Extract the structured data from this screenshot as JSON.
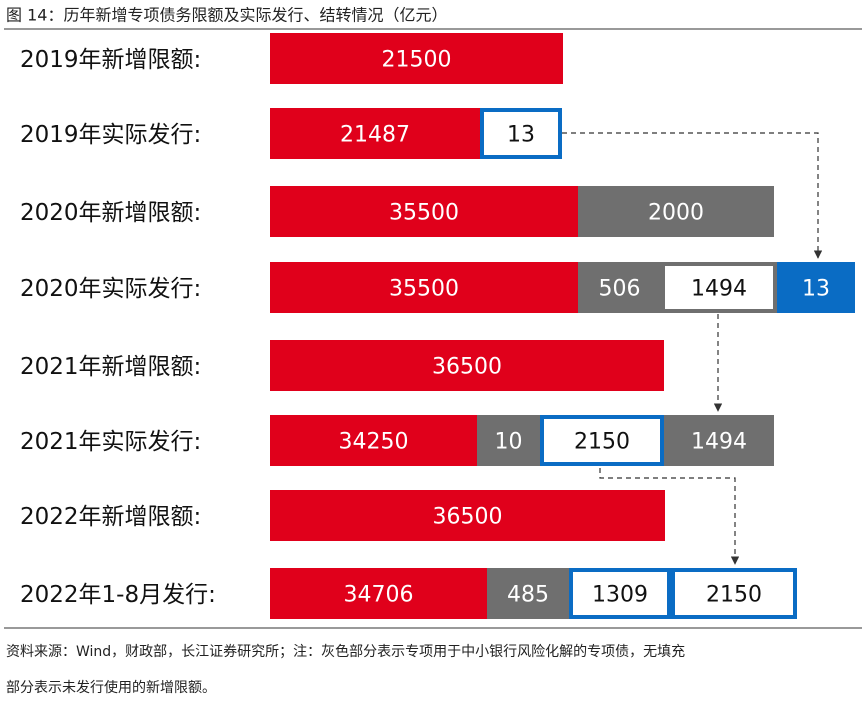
{
  "title": "图 14：历年新增专项债务限额及实际发行、结转情况（亿元）",
  "rows": [
    {
      "label": "2019年新增限额:",
      "segments": [
        "21500"
      ]
    },
    {
      "label": "2019年实际发行:",
      "segments": [
        "21487",
        "13"
      ]
    },
    {
      "label": "2020年新增限额:",
      "segments": [
        "35500",
        "2000"
      ]
    },
    {
      "label": "2020年实际发行:",
      "segments": [
        "35500",
        "506",
        "1494",
        "13"
      ]
    },
    {
      "label": "2021年新增限额:",
      "segments": [
        "36500"
      ]
    },
    {
      "label": "2021年实际发行:",
      "segments": [
        "34250",
        "10",
        "2150",
        "1494"
      ]
    },
    {
      "label": "2022年新增限额:",
      "segments": [
        "36500"
      ]
    },
    {
      "label": "2022年1-8月发行:",
      "segments": [
        "34706",
        "485",
        "1309",
        "2150"
      ]
    }
  ],
  "notes": [
    "资料来源：Wind，财政部，长江证券研究所；注：灰色部分表示专项用于中小银行风险化解的专项债，无填充",
    "部分表示未发行使用的新增限额。"
  ]
}
